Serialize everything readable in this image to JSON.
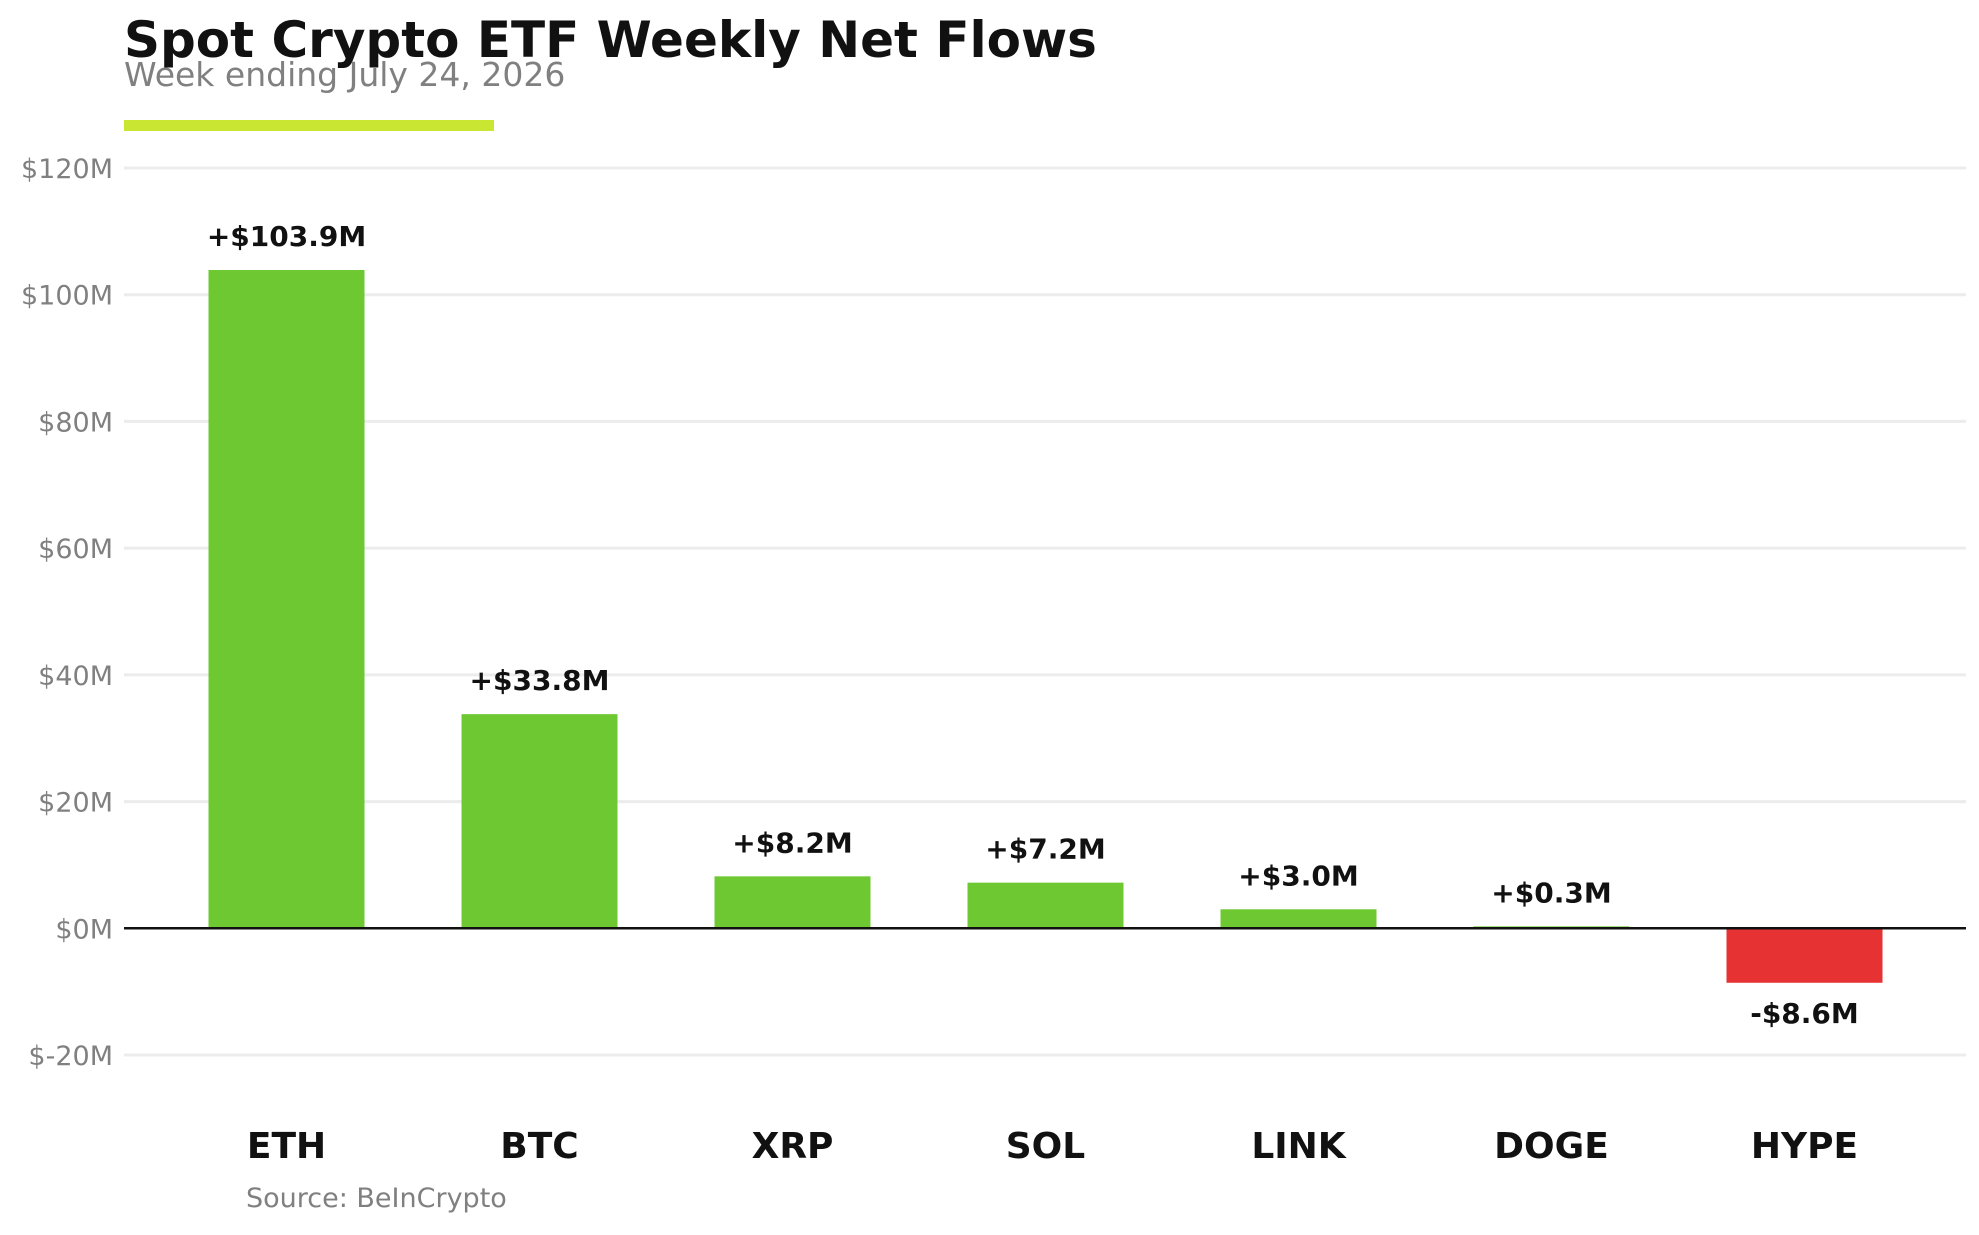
{
  "chart_data": {
    "type": "bar",
    "title": "Spot Crypto ETF Weekly Net Flows",
    "subtitle": "Week ending July 24, 2026",
    "categories": [
      "ETH",
      "BTC",
      "XRP",
      "SOL",
      "LINK",
      "DOGE",
      "HYPE"
    ],
    "values": [
      103.9,
      33.8,
      8.2,
      7.2,
      3.0,
      0.3,
      -8.6
    ],
    "data_labels": [
      "+$103.9M",
      "+$33.8M",
      "+$8.2M",
      "+$7.2M",
      "+$3.0M",
      "+$0.3M",
      "-$8.6M"
    ],
    "unit": "$M",
    "xlabel": "",
    "ylabel": "",
    "ylim": [
      -20,
      120
    ],
    "yticks": [
      -20,
      0,
      20,
      40,
      60,
      80,
      100,
      120
    ],
    "ytick_labels": [
      "$-20M",
      "$0M",
      "$20M",
      "$40M",
      "$60M",
      "$80M",
      "$100M",
      "$120M"
    ],
    "grid": true,
    "legend": "none",
    "source": "Source: BeInCrypto",
    "colors": {
      "positive": "#6ec832",
      "negative": "#e63232",
      "accent": "#c8e632",
      "gridline": "#ececec",
      "zero_line": "#111111",
      "muted_text": "#808080",
      "text": "#111111"
    }
  }
}
